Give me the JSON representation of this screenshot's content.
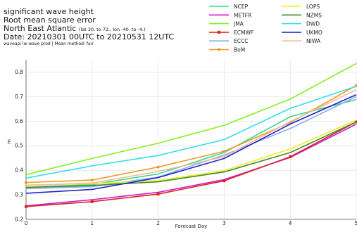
{
  "header": {
    "line1": "significant wave height",
    "line2": "Root mean square error",
    "line3": "North East Atlantic",
    "line3_small": "(lat 30. to 72., lon -40. to -4.)",
    "line4": "Date: 20210301 00UTC to 20210531 12UTC",
    "line5": "waveapi lw wave prod | Mean method: fair"
  },
  "chart_data": {
    "type": "line",
    "title": "significant wave height",
    "xlabel": "Forecast Day",
    "ylabel": "m",
    "xlim": [
      0,
      5
    ],
    "ylim": [
      0.2,
      0.85
    ],
    "x": [
      0,
      1,
      2,
      3,
      4,
      5
    ],
    "xticks": [
      0,
      1,
      2,
      3,
      4,
      5
    ],
    "yticks": [
      0.2,
      0.3,
      0.4,
      0.5,
      0.6,
      0.7,
      0.8
    ],
    "legend_position": "top-right",
    "series": [
      {
        "name": "NCEP",
        "color": "#33dd88",
        "marker": "none",
        "values": [
          0.33,
          0.342,
          0.385,
          0.472,
          0.618,
          0.688
        ]
      },
      {
        "name": "METFR",
        "color": "#cc22cc",
        "marker": "none",
        "values": [
          0.255,
          0.28,
          0.31,
          0.362,
          0.452,
          0.588
        ]
      },
      {
        "name": "JMA",
        "color": "#88ee22",
        "marker": "none",
        "values": [
          0.382,
          0.448,
          0.51,
          0.583,
          0.69,
          0.835
        ]
      },
      {
        "name": "ECMWF",
        "color": "#dd2222",
        "marker": "square",
        "values": [
          0.252,
          0.272,
          0.303,
          0.357,
          0.455,
          0.597
        ]
      },
      {
        "name": "ECCC",
        "color": "#88aaee",
        "marker": "none",
        "values": [
          0.325,
          0.333,
          0.372,
          0.462,
          0.57,
          0.7
        ]
      },
      {
        "name": "BoM",
        "color": "#ee9922",
        "marker": "circle",
        "values": [
          0.35,
          0.36,
          0.413,
          0.477,
          0.594,
          0.745
        ]
      },
      {
        "name": "LOPS",
        "color": "#eeee22",
        "marker": "none",
        "values": [
          0.34,
          0.345,
          0.358,
          0.398,
          0.487,
          0.604
        ]
      },
      {
        "name": "NZMS",
        "color": "#448833",
        "marker": "none",
        "values": [
          0.33,
          0.338,
          0.353,
          0.393,
          0.472,
          0.597
        ]
      },
      {
        "name": "DWD",
        "color": "#33ddee",
        "marker": "none",
        "values": [
          0.368,
          0.418,
          0.46,
          0.525,
          0.652,
          0.742
        ]
      },
      {
        "name": "UKMO",
        "color": "#2222cc",
        "marker": "none",
        "values": [
          0.306,
          0.322,
          0.37,
          0.448,
          0.588,
          0.708
        ]
      },
      {
        "name": "NIWA",
        "color": "#eebb99",
        "marker": "none",
        "values": [
          0.338,
          0.348,
          0.395,
          0.455,
          0.598,
          0.728
        ]
      }
    ]
  }
}
